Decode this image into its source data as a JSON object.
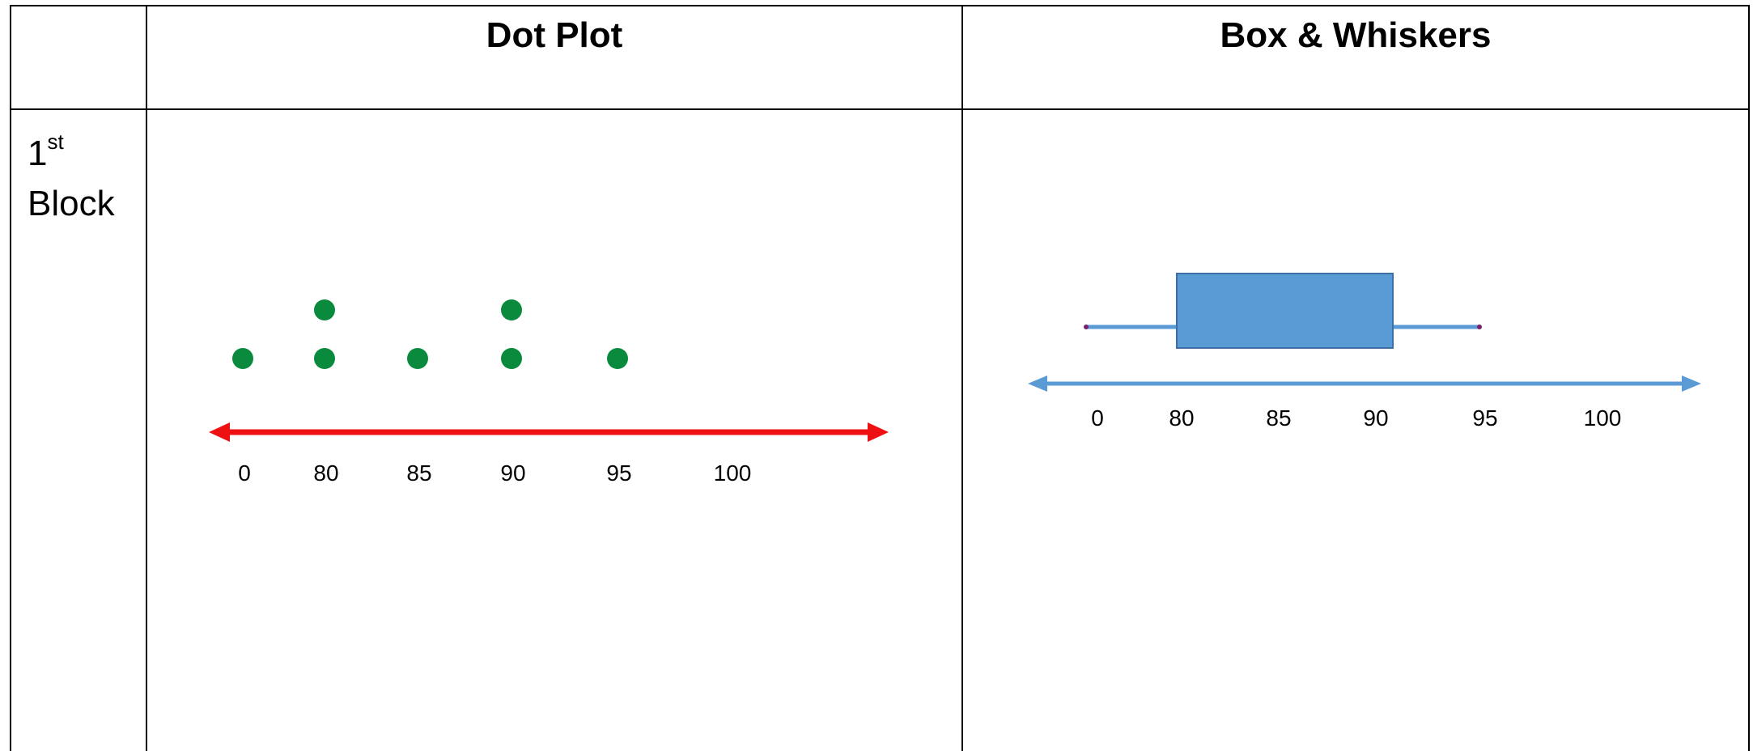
{
  "table": {
    "headers": [
      "",
      "Dot Plot",
      "Box & Whiskers"
    ],
    "rows": [
      {
        "label_number": "1",
        "label_suffix": "st",
        "label_word": "Block"
      }
    ]
  },
  "colors": {
    "dot": "#0a8a3c",
    "dot_axis": "#ee1111",
    "box_fill": "#5b9bd5",
    "box_stroke": "#3b6fa6",
    "box_axis": "#5b9bd5",
    "endpoint": "#7a1f6b"
  },
  "chart_data": [
    {
      "type": "scatter",
      "name": "dot-plot",
      "title": "Dot Plot",
      "tick_labels": [
        "0",
        "80",
        "85",
        "90",
        "95",
        "100"
      ],
      "points": [
        {
          "x": "0",
          "count": 1
        },
        {
          "x": "80",
          "count": 2
        },
        {
          "x": "85",
          "count": 1
        },
        {
          "x": "90",
          "count": 2
        },
        {
          "x": "95",
          "count": 1
        }
      ],
      "axis": "double-arrow number line"
    },
    {
      "type": "box",
      "name": "box-whiskers",
      "title": "Box & Whiskers",
      "tick_labels": [
        "0",
        "80",
        "85",
        "90",
        "95",
        "100"
      ],
      "box": {
        "min": 0,
        "q1": 80,
        "q3": 90,
        "max": 95
      },
      "axis": "double-arrow number line"
    }
  ]
}
